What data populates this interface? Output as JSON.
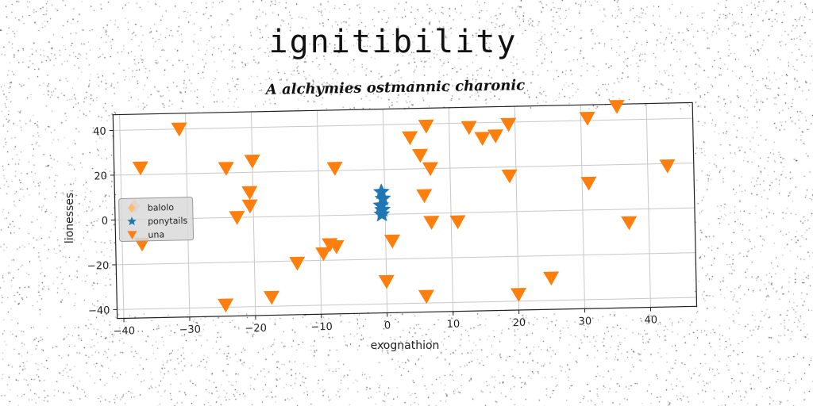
{
  "title": "ignitibility",
  "subtitle": "A alchymies ostmannic charonic",
  "chart_data": {
    "type": "scatter",
    "xlabel": "exognathion",
    "ylabel": "lionesses",
    "xlim": [
      -41,
      47
    ],
    "ylim": [
      -44,
      47
    ],
    "xticks": [
      -40,
      -30,
      -20,
      -10,
      0,
      10,
      20,
      30,
      40
    ],
    "yticks": [
      -40,
      -20,
      0,
      20,
      40
    ],
    "grid": true,
    "legend_position": "center-left",
    "series": [
      {
        "name": "balolo",
        "marker": "diamond",
        "color": "#ffbb78",
        "points": [
          [
            -38,
            6
          ]
        ]
      },
      {
        "name": "ponytails",
        "marker": "star",
        "color": "#1f77b4",
        "points": [
          [
            -0.5,
            10
          ],
          [
            -0.3,
            7
          ],
          [
            -0.6,
            4
          ],
          [
            -0.4,
            2
          ],
          [
            -0.5,
            0
          ]
        ]
      },
      {
        "name": "una",
        "marker": "triangle_down",
        "color": "#ff7f0e",
        "points": [
          [
            -37,
            23
          ],
          [
            -37,
            -11
          ],
          [
            -31,
            40
          ],
          [
            -24,
            22
          ],
          [
            -24.5,
            -39
          ],
          [
            -22.5,
            0
          ],
          [
            -20.5,
            11
          ],
          [
            -20.5,
            5
          ],
          [
            -20,
            25
          ],
          [
            -17.5,
            -36
          ],
          [
            -13.5,
            -21
          ],
          [
            -9.5,
            -17
          ],
          [
            -8.5,
            -13
          ],
          [
            -7.5,
            21
          ],
          [
            -7.5,
            -14
          ],
          [
            0,
            -30
          ],
          [
            1,
            -12
          ],
          [
            4,
            34
          ],
          [
            5.5,
            26
          ],
          [
            6,
            8
          ],
          [
            6,
            -37
          ],
          [
            6.5,
            39
          ],
          [
            7,
            20
          ],
          [
            7,
            -4
          ],
          [
            11,
            -4
          ],
          [
            13,
            38
          ],
          [
            15,
            33
          ],
          [
            17,
            34
          ],
          [
            19,
            39
          ],
          [
            19,
            16
          ],
          [
            20,
            -37
          ],
          [
            25,
            -30
          ],
          [
            31,
            41
          ],
          [
            31,
            12
          ],
          [
            35.5,
            46
          ],
          [
            37,
            -6
          ],
          [
            43,
            19
          ]
        ]
      }
    ]
  }
}
